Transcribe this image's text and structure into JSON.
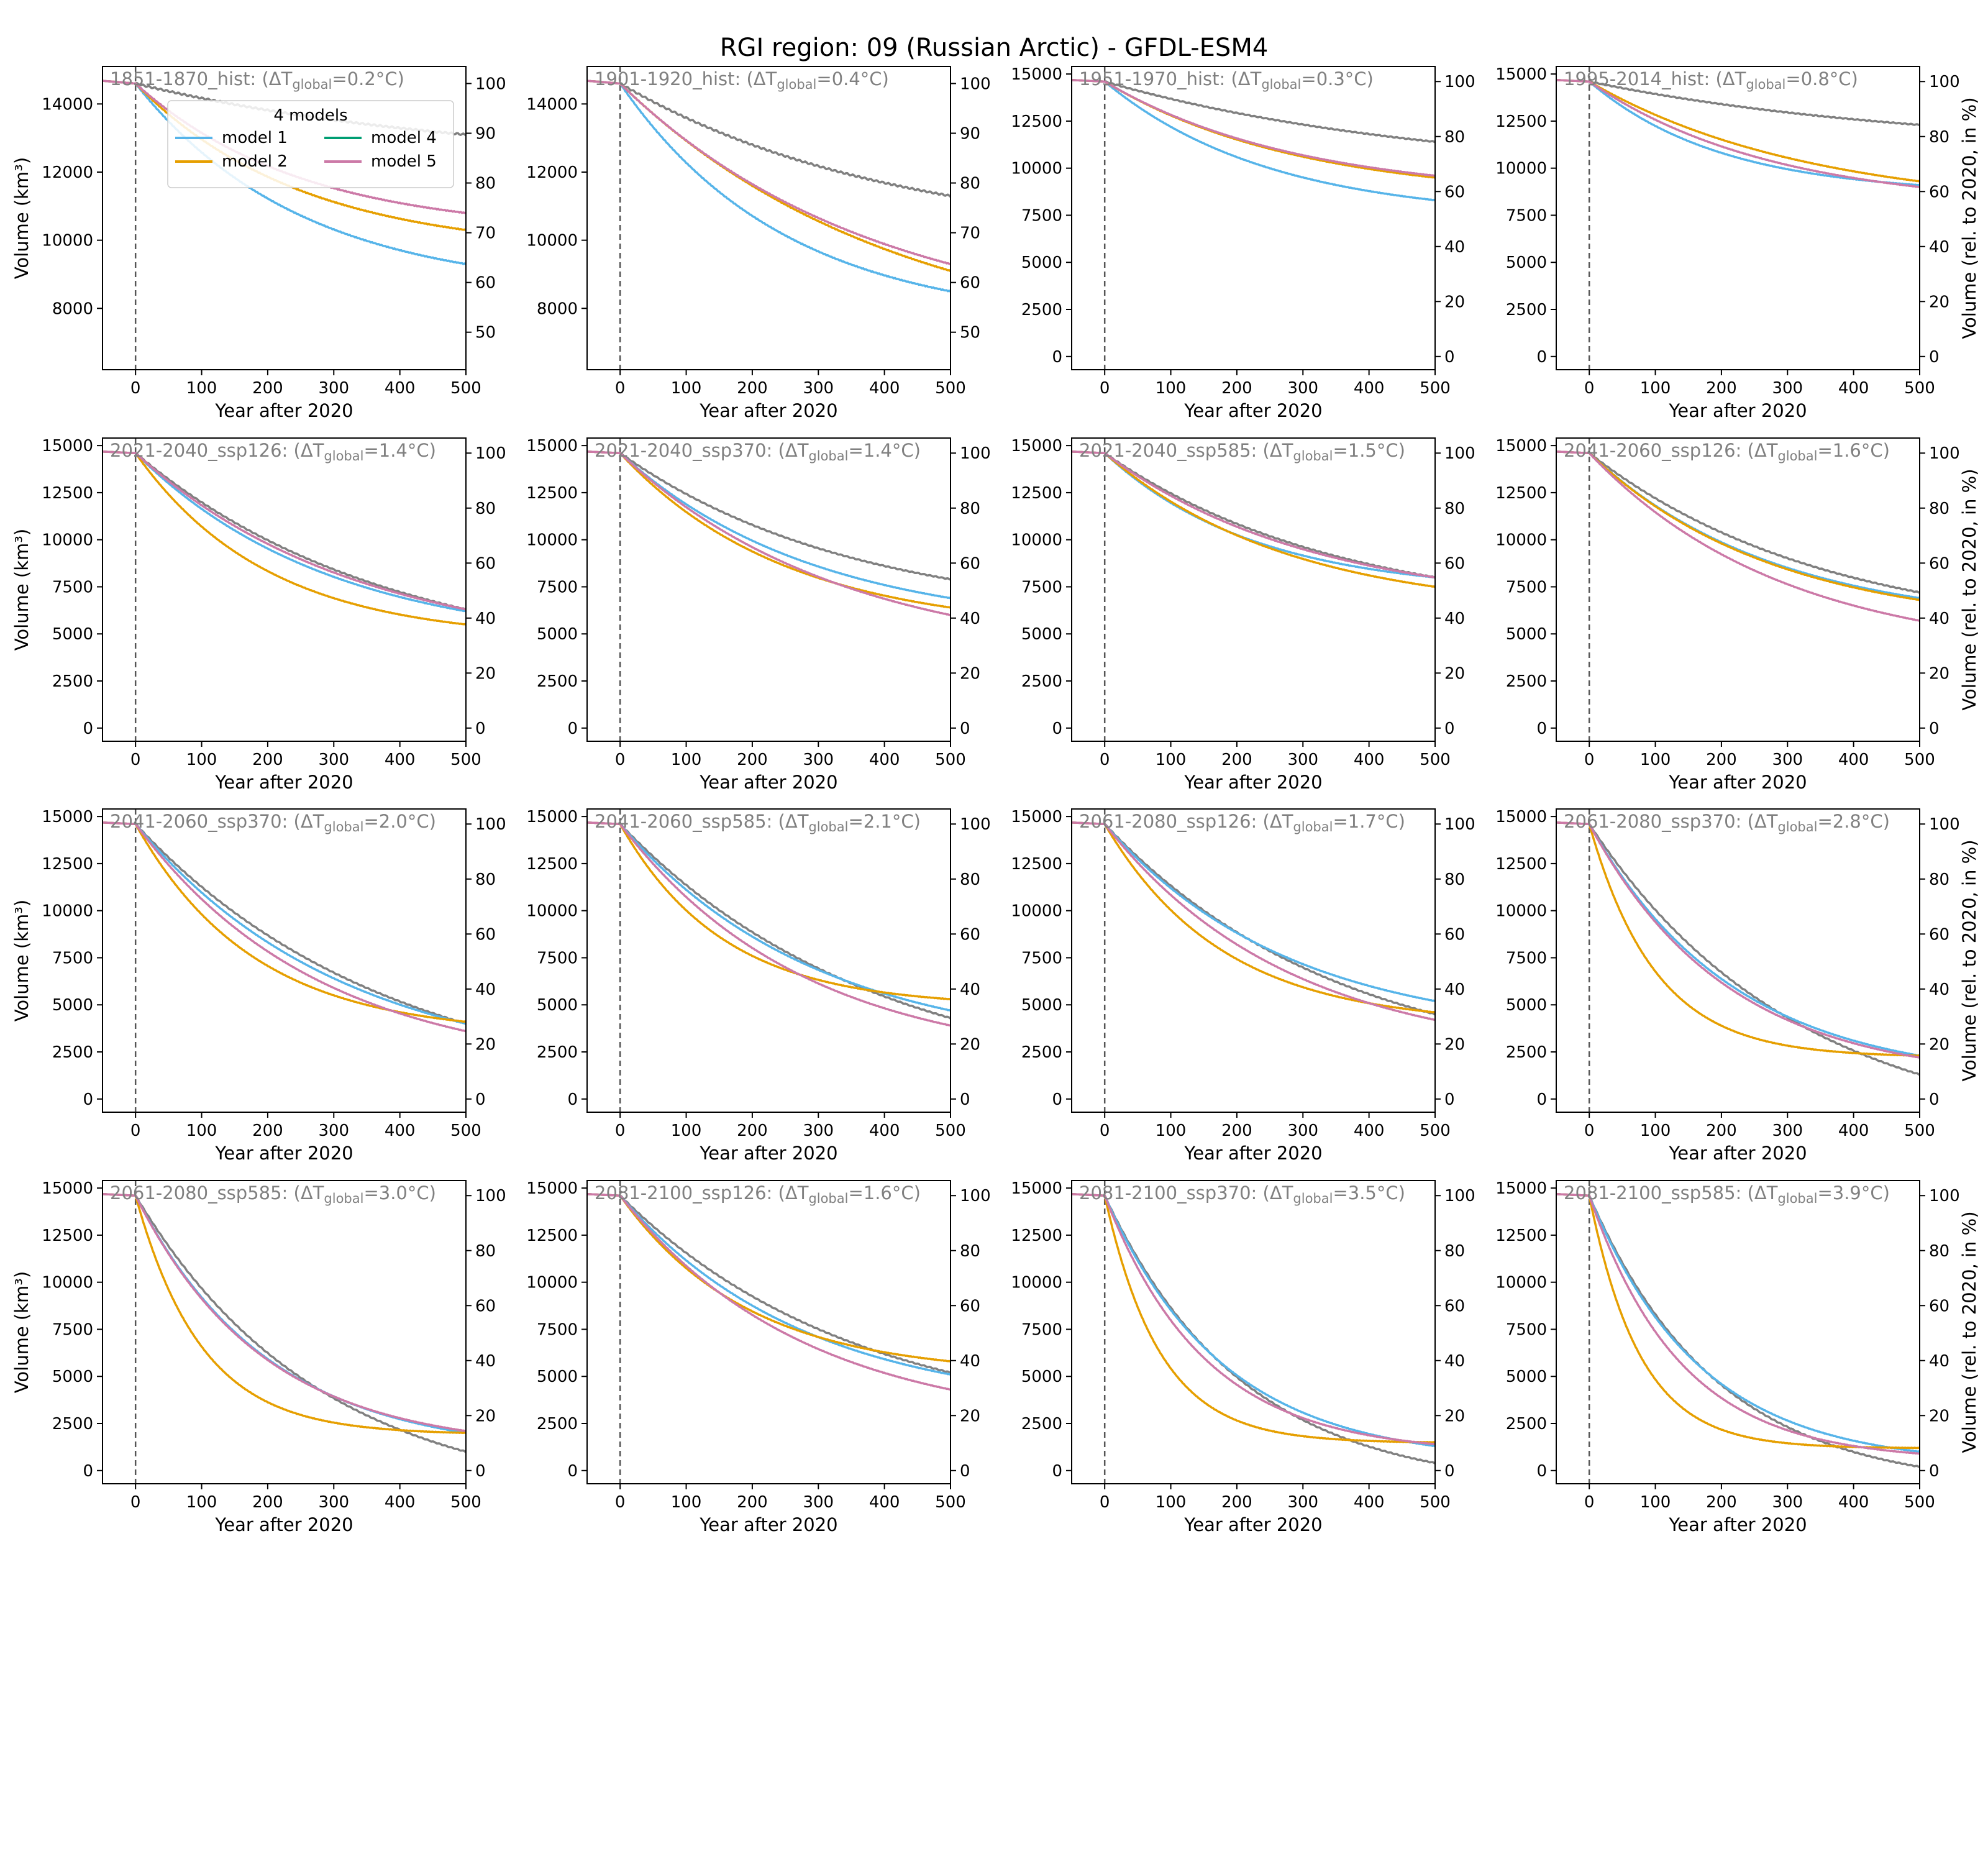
{
  "chart_data": {
    "type": "line",
    "title": "RGI region: 09 (Russian Arctic) - GFDL-ESM4",
    "xlabel": "Year after 2020",
    "ylabel_left": "Volume (km³)",
    "ylabel_right": "Volume (rel. to 2020, in %)",
    "x_ticks": [
      "0",
      "100",
      "200",
      "300",
      "400",
      "500"
    ],
    "xlim": [
      -50,
      500
    ],
    "v2020_km3": 14600,
    "legend": {
      "title": "4 models",
      "location": "upper center (first panel)",
      "entries": [
        {
          "label": "model 1",
          "color": "#56B4E9"
        },
        {
          "label": "model 2",
          "color": "#E69F00"
        },
        {
          "label": "model 4",
          "color": "#009E73"
        },
        {
          "label": "model 5",
          "color": "#CC79A7"
        }
      ]
    },
    "colors": {
      "model 1": "#56B4E9",
      "model 2": "#E69F00",
      "model 4": "#009E73",
      "model 5": "#CC79A7",
      "model 3": "#808080"
    },
    "panels": [
      {
        "title": "1851-1870_hist: (ΔT",
        "dt": "=0.2°C)",
        "ylim": [
          6200,
          15100
        ],
        "y_ticks": [
          8000,
          10000,
          12000,
          14000
        ],
        "pct_ticks": [
          50,
          60,
          70,
          80,
          90,
          100
        ],
        "final": {
          "model 1": 9300,
          "model 2": 10300,
          "model 5": 10800,
          "model 3": 13100
        },
        "shape": {
          "model 1": 2,
          "model 2": 2,
          "model 5": 2,
          "model 3": 1
        }
      },
      {
        "title": "1901-1920_hist: (ΔT",
        "dt": "=0.4°C)",
        "ylim": [
          6200,
          15100
        ],
        "y_ticks": [
          8000,
          10000,
          12000,
          14000
        ],
        "pct_ticks": [
          50,
          60,
          70,
          80,
          90,
          100
        ],
        "final": {
          "model 1": 8500,
          "model 2": 9100,
          "model 5": 9300,
          "model 3": 11300
        },
        "shape": {
          "model 1": 2,
          "model 2": 1.2,
          "model 5": 1.3,
          "model 3": 1.2
        }
      },
      {
        "title": "1951-1970_hist: (ΔT",
        "dt": "=0.3°C)",
        "ylim": [
          -700,
          15400
        ],
        "y_ticks": [
          0,
          2500,
          5000,
          7500,
          10000,
          12500,
          15000
        ],
        "pct_ticks": [
          0,
          20,
          40,
          60,
          80,
          100
        ],
        "final": {
          "model 1": 8300,
          "model 2": 9500,
          "model 5": 9600,
          "model 3": 11400
        },
        "shape": {
          "model 1": 2,
          "model 2": 1.7,
          "model 5": 1.7,
          "model 3": 1
        }
      },
      {
        "title": "1995-2014_hist: (ΔT",
        "dt": "=0.8°C)",
        "ylim": [
          -700,
          15400
        ],
        "y_ticks": [
          0,
          2500,
          5000,
          7500,
          10000,
          12500,
          15000
        ],
        "pct_ticks": [
          0,
          20,
          40,
          60,
          80,
          100
        ],
        "final": {
          "model 1": 9100,
          "model 2": 9300,
          "model 5": 9000,
          "model 3": 12300
        },
        "shape": {
          "model 1": 2.5,
          "model 2": 1.5,
          "model 5": 1.8,
          "model 3": 1
        }
      },
      {
        "title": "2021-2040_ssp126: (ΔT",
        "dt": "=1.4°C)",
        "ylim": [
          -700,
          15400
        ],
        "y_ticks": [
          0,
          2500,
          5000,
          7500,
          10000,
          12500,
          15000
        ],
        "pct_ticks": [
          0,
          20,
          40,
          60,
          80,
          100
        ],
        "final": {
          "model 1": 6200,
          "model 2": 5500,
          "model 5": 6300,
          "model 3": 6300
        },
        "shape": {
          "model 1": 1.7,
          "model 2": 2.5,
          "model 5": 1.5,
          "model 3": 1.3
        }
      },
      {
        "title": "2021-2040_ssp370: (ΔT",
        "dt": "=1.4°C)",
        "ylim": [
          -700,
          15400
        ],
        "y_ticks": [
          0,
          2500,
          5000,
          7500,
          10000,
          12500,
          15000
        ],
        "pct_ticks": [
          0,
          20,
          40,
          60,
          80,
          100
        ],
        "final": {
          "model 1": 6900,
          "model 2": 6400,
          "model 5": 6000,
          "model 3": 7900
        },
        "shape": {
          "model 1": 1.7,
          "model 2": 2,
          "model 5": 1.5,
          "model 3": 1.4
        }
      },
      {
        "title": "2021-2040_ssp585: (ΔT",
        "dt": "=1.5°C)",
        "ylim": [
          -700,
          15400
        ],
        "y_ticks": [
          0,
          2500,
          5000,
          7500,
          10000,
          12500,
          15000
        ],
        "pct_ticks": [
          0,
          20,
          40,
          60,
          80,
          100
        ],
        "final": {
          "model 1": 8000,
          "model 2": 7500,
          "model 5": 8000,
          "model 3": 8000
        },
        "shape": {
          "model 1": 2.2,
          "model 2": 1.8,
          "model 5": 1.6,
          "model 3": 1.4
        }
      },
      {
        "title": "2041-2060_ssp126: (ΔT",
        "dt": "=1.6°C)",
        "ylim": [
          -700,
          15400
        ],
        "y_ticks": [
          0,
          2500,
          5000,
          7500,
          10000,
          12500,
          15000
        ],
        "pct_ticks": [
          0,
          20,
          40,
          60,
          80,
          100
        ],
        "final": {
          "model 1": 6900,
          "model 2": 6800,
          "model 5": 5700,
          "model 3": 7200
        },
        "shape": {
          "model 1": 1.8,
          "model 2": 1.8,
          "model 5": 1.7,
          "model 3": 1.4
        }
      },
      {
        "title": "2041-2060_ssp370: (ΔT",
        "dt": "=2.0°C)",
        "ylim": [
          -700,
          15400
        ],
        "y_ticks": [
          0,
          2500,
          5000,
          7500,
          10000,
          12500,
          15000
        ],
        "pct_ticks": [
          0,
          20,
          40,
          60,
          80,
          100
        ],
        "final": {
          "model 1": 4000,
          "model 2": 4100,
          "model 5": 3600,
          "model 3": 4000
        },
        "shape": {
          "model 1": 1.6,
          "model 2": 2.8,
          "model 5": 1.8,
          "model 3": 1.3
        }
      },
      {
        "title": "2041-2060_ssp585: (ΔT",
        "dt": "=2.1°C)",
        "ylim": [
          -700,
          15400
        ],
        "y_ticks": [
          0,
          2500,
          5000,
          7500,
          10000,
          12500,
          15000
        ],
        "pct_ticks": [
          0,
          20,
          40,
          60,
          80,
          100
        ],
        "final": {
          "model 1": 4700,
          "model 2": 5300,
          "model 5": 3900,
          "model 3": 4300
        },
        "shape": {
          "model 1": 1.7,
          "model 2": 3.2,
          "model 5": 1.8,
          "model 3": 1.3
        }
      },
      {
        "title": "2061-2080_ssp126: (ΔT",
        "dt": "=1.7°C)",
        "ylim": [
          -700,
          15400
        ],
        "y_ticks": [
          0,
          2500,
          5000,
          7500,
          10000,
          12500,
          15000
        ],
        "pct_ticks": [
          0,
          20,
          40,
          60,
          80,
          100
        ],
        "final": {
          "model 1": 5200,
          "model 2": 4600,
          "model 5": 4200,
          "model 3": 4500
        },
        "shape": {
          "model 1": 1.8,
          "model 2": 2.8,
          "model 5": 1.8,
          "model 3": 1.4
        }
      },
      {
        "title": "2061-2080_ssp370: (ΔT",
        "dt": "=2.8°C)",
        "ylim": [
          -700,
          15400
        ],
        "y_ticks": [
          0,
          2500,
          5000,
          7500,
          10000,
          12500,
          15000
        ],
        "pct_ticks": [
          0,
          20,
          40,
          60,
          80,
          100
        ],
        "final": {
          "model 1": 2300,
          "model 2": 2300,
          "model 5": 2200,
          "model 3": 1300
        },
        "shape": {
          "model 1": 2.3,
          "model 2": 5,
          "model 5": 2.4,
          "model 3": 1.6
        }
      },
      {
        "title": "2061-2080_ssp585: (ΔT",
        "dt": "=3.0°C)",
        "ylim": [
          -700,
          15400
        ],
        "y_ticks": [
          0,
          2500,
          5000,
          7500,
          10000,
          12500,
          15000
        ],
        "pct_ticks": [
          0,
          20,
          40,
          60,
          80,
          100
        ],
        "final": {
          "model 1": 2000,
          "model 2": 2000,
          "model 5": 2100,
          "model 3": 1000
        },
        "shape": {
          "model 1": 2.5,
          "model 2": 5,
          "model 5": 2.6,
          "model 3": 1.8
        }
      },
      {
        "title": "2081-2100_ssp126: (ΔT",
        "dt": "=1.6°C)",
        "ylim": [
          -700,
          15400
        ],
        "y_ticks": [
          0,
          2500,
          5000,
          7500,
          10000,
          12500,
          15000
        ],
        "pct_ticks": [
          0,
          20,
          40,
          60,
          80,
          100
        ],
        "final": {
          "model 1": 5100,
          "model 2": 5800,
          "model 5": 4300,
          "model 3": 5200
        },
        "shape": {
          "model 1": 1.8,
          "model 2": 2.6,
          "model 5": 1.8,
          "model 3": 1.4
        }
      },
      {
        "title": "2081-2100_ssp370: (ΔT",
        "dt": "=3.5°C)",
        "ylim": [
          -700,
          15400
        ],
        "y_ticks": [
          0,
          2500,
          5000,
          7500,
          10000,
          12500,
          15000
        ],
        "pct_ticks": [
          0,
          20,
          40,
          60,
          80,
          100
        ],
        "final": {
          "model 1": 1300,
          "model 2": 1500,
          "model 5": 1400,
          "model 3": 400
        },
        "shape": {
          "model 1": 2.8,
          "model 2": 6,
          "model 5": 3.3,
          "model 3": 2.4
        }
      },
      {
        "title": "2081-2100_ssp585: (ΔT",
        "dt": "=3.9°C)",
        "ylim": [
          -700,
          15400
        ],
        "y_ticks": [
          0,
          2500,
          5000,
          7500,
          10000,
          12500,
          15000
        ],
        "pct_ticks": [
          0,
          20,
          40,
          60,
          80,
          100
        ],
        "final": {
          "model 1": 1000,
          "model 2": 1200,
          "model 5": 900,
          "model 3": 200
        },
        "shape": {
          "model 1": 3,
          "model 2": 6.5,
          "model 5": 3.6,
          "model 3": 2.6
        }
      }
    ]
  }
}
